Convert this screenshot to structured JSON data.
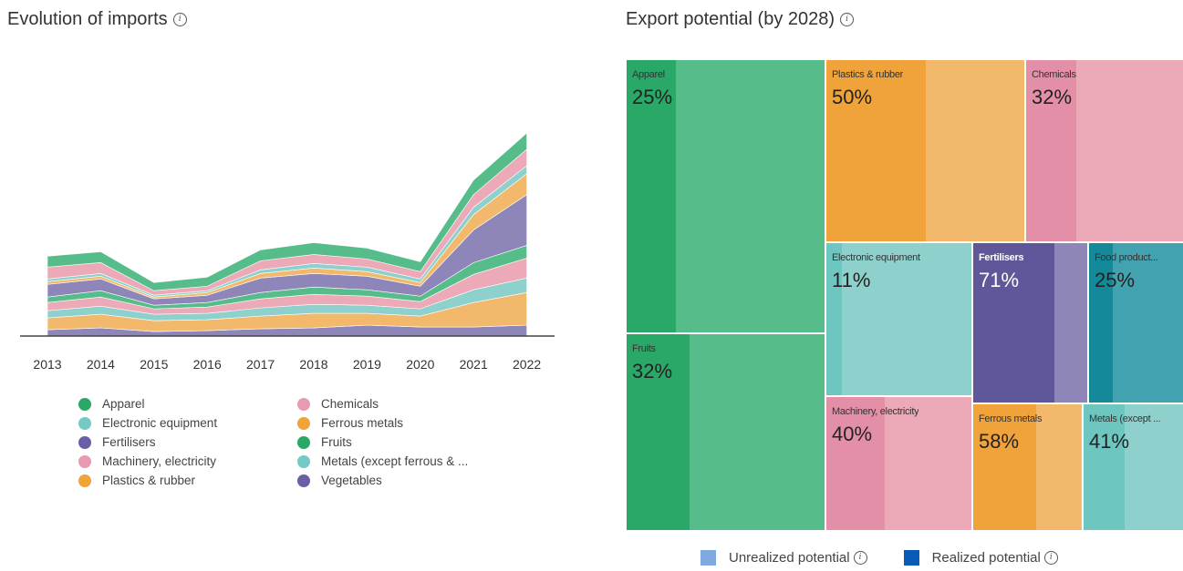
{
  "left_panel": {
    "title": "Evolution of imports"
  },
  "right_panel": {
    "title": "Export potential (by 2028)"
  },
  "icons": {
    "info": "info-icon"
  },
  "colors": {
    "apparel": "#56bd8a",
    "electronic": "#8ed1cc",
    "fertilisers": "#8e86b8",
    "machinery": "#eca9b8",
    "plastics": "#f2b96c",
    "chemicals": "#eca9b8",
    "ferrous": "#f2b96c",
    "fruits": "#56bd8a",
    "metals": "#8ed1cc",
    "vegetables": "#8e86b8",
    "food": "#42a2b0",
    "realized_legend": "#0a5bb8",
    "unrealized_legend": "#7fa9df"
  },
  "chart_data": [
    {
      "type": "area",
      "stacked": true,
      "title": "Evolution of imports",
      "x": [
        "2013",
        "2014",
        "2015",
        "2016",
        "2017",
        "2018",
        "2019",
        "2020",
        "2021",
        "2022"
      ],
      "ylim": [
        0,
        230
      ],
      "grid": false,
      "legend_position": "bottom",
      "series": [
        {
          "name": "Vegetables",
          "color": "#8e86b8",
          "values": [
            7,
            9,
            5,
            6,
            8,
            9,
            12,
            10,
            10,
            12
          ]
        },
        {
          "name": "Plastics & rubber",
          "color": "#f2b96c",
          "values": [
            13,
            15,
            12,
            12,
            14,
            16,
            13,
            12,
            27,
            36
          ]
        },
        {
          "name": "Metals (except ferrous & ...",
          "color": "#8ed1cc",
          "values": [
            8,
            9,
            7,
            7,
            9,
            10,
            9,
            8,
            14,
            16
          ]
        },
        {
          "name": "Machinery, electricity",
          "color": "#eca9b8",
          "values": [
            9,
            10,
            6,
            7,
            10,
            11,
            10,
            8,
            17,
            22
          ]
        },
        {
          "name": "Fruits",
          "color": "#56bd8a",
          "values": [
            6,
            7,
            4,
            5,
            7,
            8,
            7,
            6,
            13,
            14
          ]
        },
        {
          "name": "Fertilisers",
          "color": "#8e86b8",
          "values": [
            14,
            13,
            7,
            8,
            16,
            15,
            15,
            11,
            36,
            56
          ]
        },
        {
          "name": "Ferrous metals",
          "color": "#f2b96c",
          "values": [
            3,
            3,
            2,
            3,
            5,
            6,
            5,
            4,
            17,
            23
          ]
        },
        {
          "name": "Electronic equipment",
          "color": "#8ed1cc",
          "values": [
            3,
            3,
            2,
            2,
            4,
            5,
            5,
            4,
            8,
            9
          ]
        },
        {
          "name": "Chemicals",
          "color": "#eca9b8",
          "values": [
            13,
            12,
            5,
            5,
            10,
            10,
            9,
            8,
            14,
            18
          ]
        },
        {
          "name": "Apparel",
          "color": "#56bd8a",
          "values": [
            12,
            12,
            9,
            10,
            12,
            13,
            12,
            11,
            16,
            18
          ]
        }
      ]
    },
    {
      "type": "treemap",
      "title": "Export potential (by 2028)",
      "cells": [
        {
          "name": "Apparel",
          "percent": "25%",
          "realized_fraction": 0.25,
          "color": "#56bd8a"
        },
        {
          "name": "Fruits",
          "percent": "32%",
          "realized_fraction": 0.32,
          "color": "#56bd8a"
        },
        {
          "name": "Plastics & rubber",
          "percent": "50%",
          "realized_fraction": 0.5,
          "color": "#f2b96c"
        },
        {
          "name": "Chemicals",
          "percent": "32%",
          "realized_fraction": 0.32,
          "color": "#eca9b8"
        },
        {
          "name": "Electronic equipment",
          "percent": "11%",
          "realized_fraction": 0.11,
          "color": "#8ed1cc"
        },
        {
          "name": "Fertilisers",
          "percent": "71%",
          "realized_fraction": 0.71,
          "color": "#8e86b8"
        },
        {
          "name": "Food product...",
          "percent": "25%",
          "realized_fraction": 0.25,
          "color": "#42a2b0"
        },
        {
          "name": "Machinery, electricity",
          "percent": "40%",
          "realized_fraction": 0.4,
          "color": "#eca9b8"
        },
        {
          "name": "Ferrous metals",
          "percent": "58%",
          "realized_fraction": 0.58,
          "color": "#f2b96c"
        },
        {
          "name": "Metals (except ...",
          "percent": "41%",
          "realized_fraction": 0.41,
          "color": "#8ed1cc"
        }
      ],
      "legend": {
        "unrealized": "Unrealized potential",
        "realized": "Realized potential"
      }
    }
  ],
  "area_legend": [
    {
      "name": "Apparel",
      "color": "#2aa867"
    },
    {
      "name": "Chemicals",
      "color": "#e79bb0"
    },
    {
      "name": "Electronic equipment",
      "color": "#74c9c4"
    },
    {
      "name": "Ferrous metals",
      "color": "#f0a23b"
    },
    {
      "name": "Fertilisers",
      "color": "#6a5fa6"
    },
    {
      "name": "Fruits",
      "color": "#2aa867"
    },
    {
      "name": "Machinery, electricity",
      "color": "#e79bb0"
    },
    {
      "name": "Metals (except ferrous & ...",
      "color": "#74c9c4"
    },
    {
      "name": "Plastics & rubber",
      "color": "#f0a23b"
    },
    {
      "name": "Vegetables",
      "color": "#6a5fa6"
    }
  ]
}
